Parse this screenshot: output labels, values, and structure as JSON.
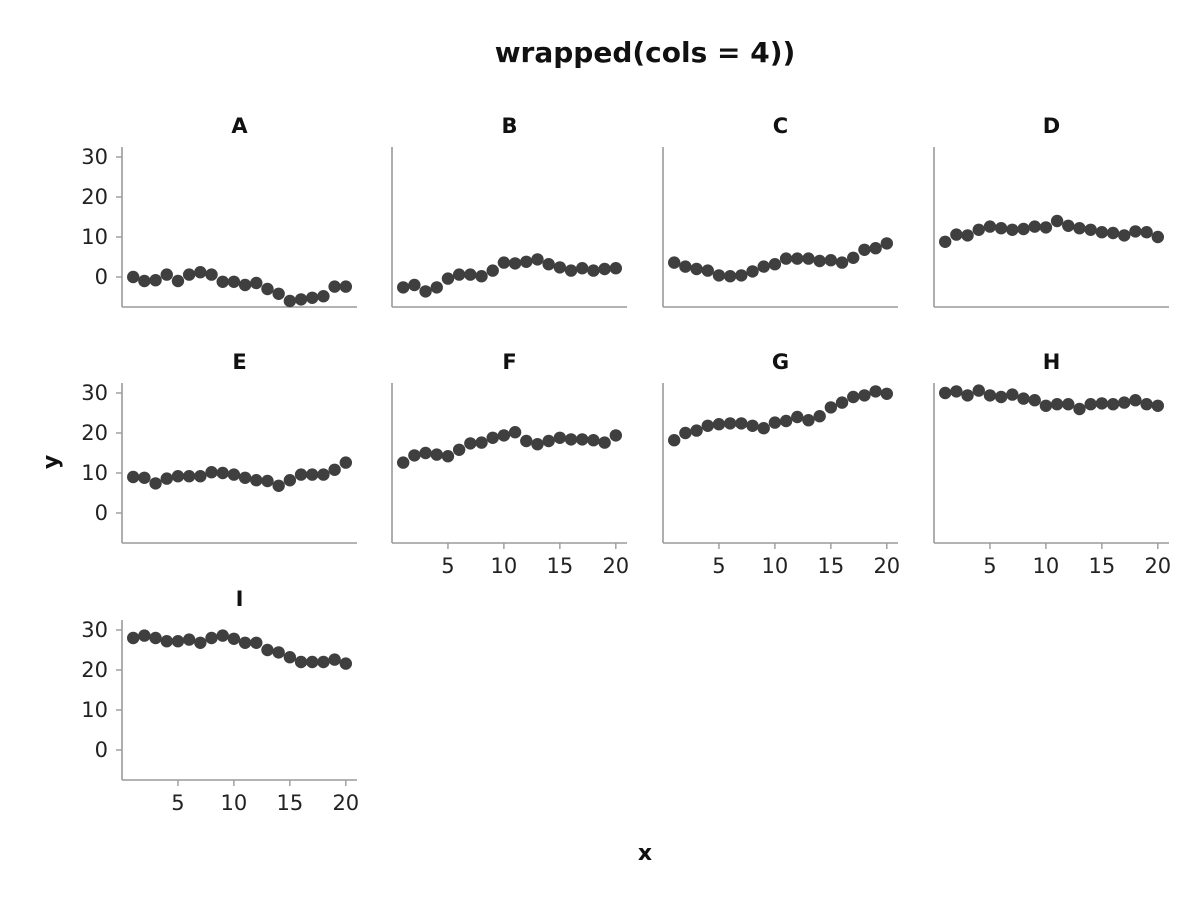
{
  "chart_data": {
    "type": "scatter",
    "title": "wrapped(cols = 4))",
    "xlabel": "x",
    "ylabel": "y",
    "xlim": [
      0,
      21
    ],
    "ylim": [
      -7.5,
      32.5
    ],
    "xticks": [
      5,
      10,
      15,
      20
    ],
    "yticks": [
      0,
      10,
      20,
      30
    ],
    "grid": false,
    "point_color": "#3f3f3f",
    "axis_color": "#9a9a9a",
    "x": [
      1,
      2,
      3,
      4,
      5,
      6,
      7,
      8,
      9,
      10,
      11,
      12,
      13,
      14,
      15,
      16,
      17,
      18,
      19,
      20
    ],
    "panels": [
      {
        "name": "A",
        "values": [
          0.0,
          -1.0,
          -0.8,
          0.6,
          -1.0,
          0.6,
          1.2,
          0.6,
          -1.2,
          -1.2,
          -2.0,
          -1.5,
          -3.0,
          -4.2,
          -6.0,
          -5.6,
          -5.2,
          -4.8,
          -2.4,
          -2.4
        ]
      },
      {
        "name": "B",
        "values": [
          -2.6,
          -2.0,
          -3.6,
          -2.6,
          -0.4,
          0.6,
          0.6,
          0.2,
          1.6,
          3.6,
          3.4,
          3.8,
          4.4,
          3.2,
          2.4,
          1.6,
          2.2,
          1.6,
          2.0,
          2.2
        ]
      },
      {
        "name": "C",
        "values": [
          3.6,
          2.6,
          2.0,
          1.6,
          0.4,
          0.2,
          0.4,
          1.4,
          2.6,
          3.2,
          4.6,
          4.6,
          4.6,
          4.0,
          4.2,
          3.6,
          4.8,
          6.8,
          7.2,
          8.4
        ]
      },
      {
        "name": "D",
        "values": [
          8.8,
          10.6,
          10.4,
          11.8,
          12.6,
          12.2,
          11.8,
          12.0,
          12.6,
          12.4,
          14.0,
          12.8,
          12.2,
          11.8,
          11.2,
          11.0,
          10.4,
          11.4,
          11.2,
          10.0
        ]
      },
      {
        "name": "E",
        "values": [
          9.0,
          8.8,
          7.4,
          8.6,
          9.2,
          9.2,
          9.2,
          10.2,
          10.0,
          9.6,
          8.8,
          8.2,
          8.0,
          6.8,
          8.2,
          9.6,
          9.6,
          9.6,
          10.8,
          12.6
        ]
      },
      {
        "name": "F",
        "values": [
          12.6,
          14.4,
          15.0,
          14.6,
          14.2,
          15.8,
          17.4,
          17.6,
          18.8,
          19.4,
          20.2,
          18.0,
          17.2,
          18.0,
          18.8,
          18.4,
          18.4,
          18.2,
          17.6,
          19.4
        ]
      },
      {
        "name": "G",
        "values": [
          18.2,
          20.0,
          20.6,
          21.8,
          22.2,
          22.4,
          22.4,
          21.8,
          21.2,
          22.6,
          23.0,
          24.0,
          23.2,
          24.2,
          26.4,
          27.6,
          29.0,
          29.4,
          30.4,
          29.8
        ]
      },
      {
        "name": "H",
        "values": [
          30.0,
          30.4,
          29.4,
          30.6,
          29.4,
          29.0,
          29.6,
          28.6,
          28.2,
          26.8,
          27.2,
          27.2,
          26.0,
          27.2,
          27.4,
          27.2,
          27.6,
          28.2,
          27.2,
          26.8
        ]
      },
      {
        "name": "I",
        "values": [
          28.0,
          28.6,
          28.0,
          27.2,
          27.2,
          27.6,
          26.8,
          28.0,
          28.6,
          27.8,
          26.8,
          26.8,
          25.0,
          24.4,
          23.2,
          22.0,
          22.0,
          22.0,
          22.6,
          21.6
        ]
      }
    ]
  }
}
